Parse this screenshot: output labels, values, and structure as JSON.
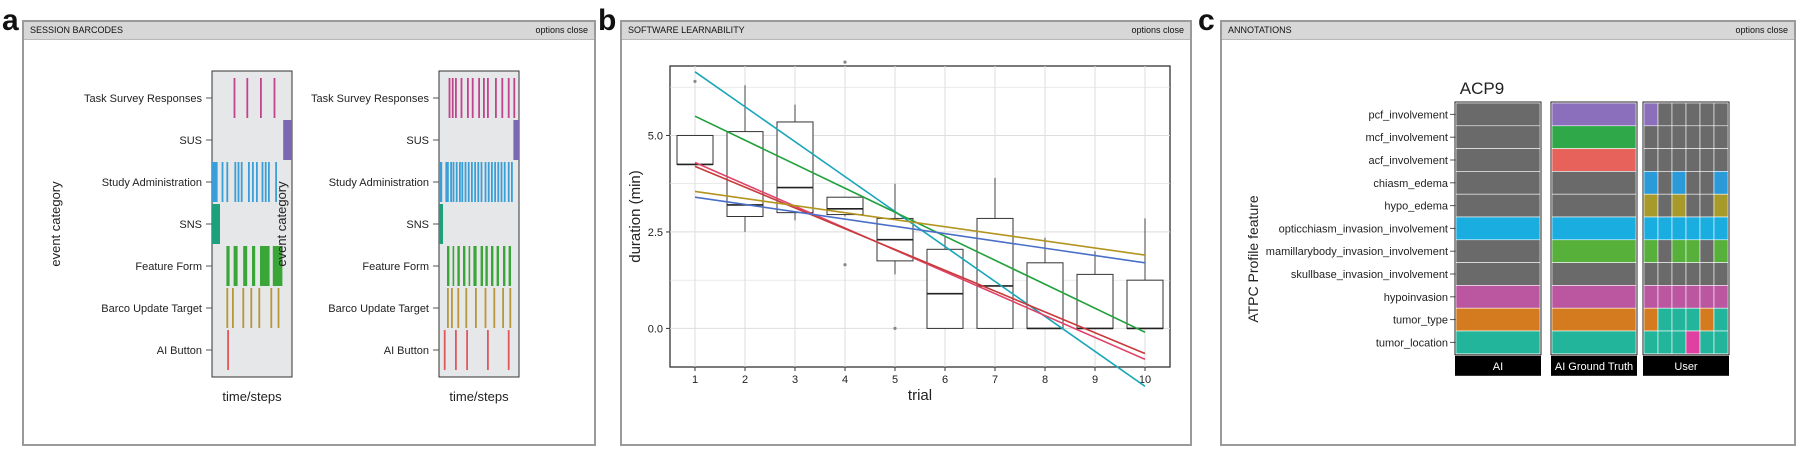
{
  "panel_a": {
    "letter": "a",
    "header_title": "SESSION BARCODES",
    "header_options": "options close"
  },
  "panel_b": {
    "letter": "b",
    "header_title": "SOFTWARE LEARNABILITY",
    "header_options": "options close"
  },
  "panel_c": {
    "letter": "c",
    "header_title": "ANNOTATIONS",
    "header_options": "options close"
  },
  "chart_data": [
    {
      "type": "barcode",
      "xlabel": "time/steps",
      "ylabel": "event category",
      "categories": [
        "Task Survey Responses",
        "SUS",
        "Study Administration",
        "SNS",
        "Feature Form",
        "Barco Update Target",
        "AI Button"
      ],
      "colors": {
        "Task Survey Responses": "#c2448f",
        "SUS": "#7b68b3",
        "Study Administration": "#3a9fd8",
        "SNS": "#1fa07c",
        "Feature Form": "#3aa637",
        "Barco Update Target": "#b8973a",
        "AI Button": "#e0585a"
      },
      "sessions": [
        {
          "events": {
            "Task Survey Responses": [
              0.27,
              0.43,
              0.6,
              0.77
            ],
            "SUS": [
              [
                0.89,
                1.0
              ]
            ],
            "Study Administration": [
              [
                0.0,
                0.07
              ],
              0.12,
              0.18,
              0.28,
              0.32,
              0.36,
              0.45,
              0.5,
              0.55,
              0.62,
              0.66,
              0.7,
              0.79
            ],
            "SNS": [
              [
                0.0,
                0.1
              ]
            ],
            "Feature Form": [
              [
                0.18,
                0.22
              ],
              [
                0.27,
                0.32
              ],
              [
                0.39,
                0.44
              ],
              [
                0.5,
                0.54
              ],
              [
                0.6,
                0.72
              ],
              [
                0.76,
                0.88
              ]
            ],
            "Barco Update Target": [
              0.18,
              0.25,
              0.38,
              0.48,
              0.58,
              0.73,
              0.82
            ],
            "AI Button": [
              0.19
            ]
          }
        },
        {
          "events": {
            "Task Survey Responses": [
              0.12,
              0.16,
              0.2,
              0.27,
              0.35,
              0.41,
              0.49,
              0.55,
              0.6,
              0.7,
              0.78,
              0.86,
              0.93
            ],
            "SUS": [
              [
                0.93,
                1.0
              ]
            ],
            "Study Administration": [
              [
                0.0,
                0.04
              ],
              0.08,
              0.1,
              0.14,
              0.17,
              0.21,
              0.25,
              0.28,
              0.32,
              0.36,
              0.4,
              0.44,
              0.48,
              0.52,
              0.57,
              0.61,
              0.65,
              0.69,
              0.73,
              0.77,
              0.81,
              0.86,
              0.9
            ],
            "SNS": [
              [
                0.0,
                0.05
              ]
            ],
            "Feature Form": [
              [
                0.1,
                0.13
              ],
              [
                0.17,
                0.19
              ],
              [
                0.23,
                0.26
              ],
              [
                0.3,
                0.33
              ],
              [
                0.37,
                0.39
              ],
              [
                0.43,
                0.47
              ],
              [
                0.52,
                0.55
              ],
              [
                0.58,
                0.61
              ],
              [
                0.65,
                0.68
              ],
              [
                0.72,
                0.75
              ],
              [
                0.8,
                0.83
              ],
              [
                0.87,
                0.9
              ]
            ],
            "Barco Update Target": [
              0.1,
              0.15,
              0.23,
              0.33,
              0.45,
              0.57,
              0.68,
              0.79,
              0.88
            ],
            "AI Button": [
              0.06,
              0.2,
              0.34,
              0.6,
              0.86
            ]
          }
        }
      ]
    },
    {
      "type": "boxplot_with_lines",
      "xlabel": "trial",
      "ylabel": "duration (min)",
      "x_ticks": [
        1,
        2,
        3,
        4,
        5,
        6,
        7,
        8,
        9,
        10
      ],
      "y_ticks": [
        "0.0",
        "2.5",
        "5.0"
      ],
      "xlim": [
        0.5,
        10.5
      ],
      "ylim": [
        -1.0,
        6.8
      ],
      "grid": true,
      "boxes": [
        {
          "x": 1,
          "q1": 4.25,
          "median": 4.25,
          "q3": 5.0,
          "whisker_low": 4.25,
          "whisker_high": 5.0,
          "outliers": [
            6.4
          ]
        },
        {
          "x": 2,
          "q1": 2.9,
          "median": 3.2,
          "q3": 5.1,
          "whisker_low": 2.5,
          "whisker_high": 6.3,
          "outliers": []
        },
        {
          "x": 3,
          "q1": 3.0,
          "median": 3.65,
          "q3": 5.35,
          "whisker_low": 2.8,
          "whisker_high": 5.8,
          "outliers": []
        },
        {
          "x": 4,
          "q1": 2.95,
          "median": 3.1,
          "q3": 3.4,
          "whisker_low": 2.9,
          "whisker_high": 3.4,
          "outliers": [
            6.9,
            1.65
          ]
        },
        {
          "x": 5,
          "q1": 1.75,
          "median": 2.3,
          "q3": 2.85,
          "whisker_low": 1.4,
          "whisker_high": 3.75,
          "outliers": [
            0.0
          ]
        },
        {
          "x": 6,
          "q1": 0.0,
          "median": 0.9,
          "q3": 2.05,
          "whisker_low": 0.0,
          "whisker_high": 2.4,
          "outliers": []
        },
        {
          "x": 7,
          "q1": 0.0,
          "median": 1.1,
          "q3": 2.85,
          "whisker_low": 0.0,
          "whisker_high": 3.9,
          "outliers": []
        },
        {
          "x": 8,
          "q1": 0.0,
          "median": 0.0,
          "q3": 1.7,
          "whisker_low": 0.0,
          "whisker_high": 2.35,
          "outliers": []
        },
        {
          "x": 9,
          "q1": 0.0,
          "median": 0.0,
          "q3": 1.4,
          "whisker_low": 0.0,
          "whisker_high": 2.0,
          "outliers": []
        },
        {
          "x": 10,
          "q1": 0.0,
          "median": 0.0,
          "q3": 1.25,
          "whisker_low": 0.0,
          "whisker_high": 2.85,
          "outliers": []
        }
      ],
      "series": [
        {
          "color": "#17a6b8",
          "x": [
            1,
            10
          ],
          "y": [
            6.65,
            -1.5
          ]
        },
        {
          "color": "#23a13e",
          "x": [
            1,
            10
          ],
          "y": [
            5.5,
            -0.1
          ]
        },
        {
          "color": "#e0446b",
          "x": [
            1,
            10
          ],
          "y": [
            4.3,
            -0.8
          ]
        },
        {
          "color": "#c93a3a",
          "x": [
            1,
            10
          ],
          "y": [
            4.2,
            -0.65
          ]
        },
        {
          "color": "#4a6fc8",
          "x": [
            1,
            10
          ],
          "y": [
            3.4,
            1.7
          ]
        },
        {
          "color": "#b3941e",
          "x": [
            1,
            10
          ],
          "y": [
            3.55,
            1.9
          ]
        }
      ]
    },
    {
      "type": "heatmap",
      "title": "ACP9",
      "ylabel": "ATPC Profile feature",
      "rows": [
        "pcf_involvement",
        "mcf_involvement",
        "acf_involvement",
        "chiasm_edema",
        "hypo_edema",
        "opticchiasm_invasion_involvement",
        "mamillarybody_invasion_involvement",
        "skullbase_invasion_involvement",
        "hypoinvasion",
        "tumor_type",
        "tumor_location"
      ],
      "columns": [
        "AI",
        "AI Ground Truth",
        "User"
      ],
      "colors": {
        "gray": "#6a6a6a",
        "purple": "#8b6fbd",
        "green": "#2fa84a",
        "red": "#e6625a",
        "blue": "#2a9ad8",
        "olive": "#a89a2a",
        "cyan": "#1aaee0",
        "lime": "#56b03a",
        "magenta": "#bb56a0",
        "orange": "#d57b1f",
        "teal": "#22b59b",
        "pink": "#e040a0"
      },
      "ai": [
        "gray",
        "gray",
        "gray",
        "gray",
        "gray",
        "cyan",
        "gray",
        "gray",
        "magenta",
        "orange",
        "teal"
      ],
      "ground_truth": [
        "purple",
        "green",
        "red",
        "gray",
        "gray",
        "cyan",
        "lime",
        "gray",
        "magenta",
        "orange",
        "teal"
      ],
      "user": [
        [
          "purple",
          "gray",
          "gray",
          "gray",
          "gray",
          "gray"
        ],
        [
          "gray",
          "gray",
          "gray",
          "gray",
          "gray",
          "gray"
        ],
        [
          "gray",
          "gray",
          "gray",
          "gray",
          "gray",
          "gray"
        ],
        [
          "blue",
          "gray",
          "blue",
          "gray",
          "gray",
          "blue"
        ],
        [
          "olive",
          "gray",
          "olive",
          "gray",
          "gray",
          "olive"
        ],
        [
          "cyan",
          "cyan",
          "cyan",
          "cyan",
          "cyan",
          "cyan"
        ],
        [
          "lime",
          "gray",
          "lime",
          "lime",
          "gray",
          "lime"
        ],
        [
          "gray",
          "gray",
          "gray",
          "gray",
          "gray",
          "gray"
        ],
        [
          "magenta",
          "magenta",
          "magenta",
          "magenta",
          "magenta",
          "magenta"
        ],
        [
          "orange",
          "teal",
          "teal",
          "teal",
          "orange",
          "teal"
        ],
        [
          "teal",
          "teal",
          "teal",
          "pink",
          "teal",
          "teal"
        ]
      ]
    }
  ]
}
